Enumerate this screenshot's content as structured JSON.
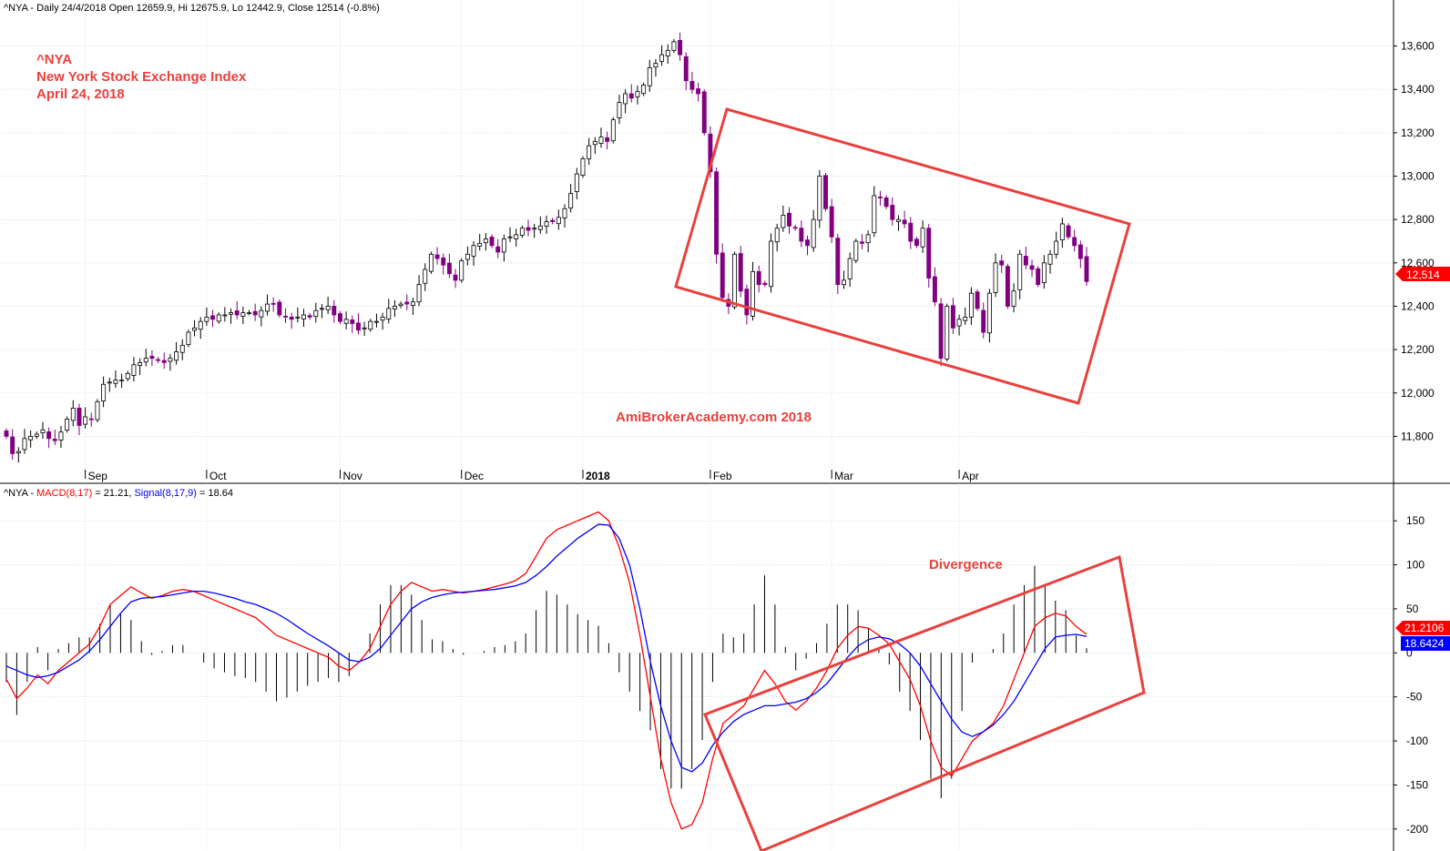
{
  "header": {
    "price_info": "^NYA - Daily 24/4/2018 Open 12659.9, Hi 12675.9, Lo 12442.9, Close 12514 (-0.8%)",
    "macd_prefix": "^NYA - ",
    "macd_label": "MACD(8,17)",
    "macd_value": " = 21.21, ",
    "signal_label": "Signal(8,17,9)",
    "signal_value": " = 18.64"
  },
  "annotations": {
    "title_line1": "^NYA",
    "title_line2": "New York Stock Exchange Index",
    "title_line3": "April 24, 2018",
    "watermark": "AmiBrokerAcademy.com  2018",
    "divergence": "Divergence"
  },
  "badges": {
    "close": "12,514",
    "macd": "21.2106",
    "signal": "18.6424"
  },
  "colors": {
    "up_candle": "#ffffff",
    "down_candle": "#800080",
    "macd_line": "#ff0000",
    "signal_line": "#0000ff",
    "annotation": "#e8413c",
    "signal_badge": "#0000ff",
    "close_badge": "#ff0000"
  },
  "chart_data": [
    {
      "type": "candlestick",
      "title": "^NYA - Daily",
      "y_ticks": [
        "11,800",
        "12,000",
        "12,200",
        "12,400",
        "12,600",
        "12,800",
        "13,000",
        "13,200",
        "13,400",
        "13,600"
      ],
      "y_tick_values": [
        11800,
        12000,
        12200,
        12400,
        12600,
        12800,
        13000,
        13200,
        13400,
        13600
      ],
      "ylim": [
        11680,
        13720
      ],
      "x_ticks": [
        "Sep",
        "Oct",
        "Nov",
        "Dec",
        "2018",
        "Feb",
        "Mar",
        "Apr"
      ],
      "x_tick_bars": [
        13,
        33,
        55,
        75,
        95,
        116,
        136,
        157
      ],
      "close_series": [
        11800,
        11720,
        11730,
        11790,
        11800,
        11810,
        11830,
        11790,
        11780,
        11820,
        11880,
        11930,
        11850,
        11890,
        11880,
        11960,
        12040,
        12050,
        12060,
        12060,
        12090,
        12130,
        12140,
        12160,
        12160,
        12150,
        12140,
        12160,
        12190,
        12220,
        12280,
        12300,
        12330,
        12350,
        12340,
        12360,
        12360,
        12370,
        12360,
        12370,
        12370,
        12360,
        12380,
        12410,
        12410,
        12360,
        12350,
        12340,
        12350,
        12360,
        12350,
        12380,
        12390,
        12400,
        12360,
        12330,
        12340,
        12320,
        12290,
        12300,
        12330,
        12330,
        12350,
        12390,
        12400,
        12410,
        12410,
        12420,
        12500,
        12570,
        12640,
        12620,
        12590,
        12550,
        12520,
        12610,
        12640,
        12680,
        12690,
        12710,
        12680,
        12650,
        12710,
        12720,
        12730,
        12760,
        12750,
        12760,
        12770,
        12790,
        12790,
        12810,
        12850,
        12920,
        13010,
        13080,
        13140,
        13160,
        13180,
        13160,
        13260,
        13340,
        13380,
        13360,
        13390,
        13420,
        13500,
        13520,
        13560,
        13580,
        13620,
        13560,
        13440,
        13400,
        13380,
        13200,
        13020,
        12640,
        12440,
        12400,
        12640,
        12470,
        12360,
        12560,
        12500,
        12500,
        12700,
        12760,
        12820,
        12770,
        12760,
        12700,
        12680,
        12800,
        13000,
        12850,
        12720,
        12500,
        12520,
        12620,
        12700,
        12690,
        12730,
        12910,
        12900,
        12860,
        12800,
        12800,
        12780,
        12700,
        12680,
        12760,
        12530,
        12420,
        12160,
        12400,
        12300,
        12340,
        12350,
        12460,
        12390,
        12280,
        12460,
        12600,
        12590,
        12400,
        12470,
        12640,
        12590,
        12570,
        12500,
        12600,
        12640,
        12700,
        12780,
        12720,
        12680,
        12620,
        12514
      ],
      "macd_series": [
        -30,
        -52,
        -40,
        -25,
        -35,
        -20,
        -10,
        0,
        10,
        30,
        55,
        65,
        75,
        68,
        62,
        65,
        70,
        72,
        70,
        65,
        60,
        55,
        50,
        45,
        40,
        30,
        20,
        15,
        10,
        5,
        0,
        -5,
        -15,
        -20,
        -10,
        5,
        30,
        55,
        70,
        80,
        75,
        70,
        72,
        70,
        68,
        70,
        72,
        75,
        78,
        82,
        90,
        110,
        130,
        140,
        145,
        150,
        155,
        160,
        150,
        120,
        80,
        20,
        -50,
        -120,
        -170,
        -200,
        -195,
        -170,
        -120,
        -80,
        -70,
        -60,
        -40,
        -20,
        -35,
        -55,
        -65,
        -55,
        -40,
        -20,
        5,
        20,
        30,
        28,
        20,
        10,
        -10,
        -30,
        -60,
        -100,
        -130,
        -140,
        -120,
        -100,
        -90,
        -80,
        -60,
        -30,
        0,
        30,
        40,
        45,
        42,
        30,
        21
      ],
      "signal_series": [
        -15,
        -20,
        -25,
        -28,
        -26,
        -22,
        -15,
        -8,
        2,
        15,
        30,
        45,
        58,
        62,
        63,
        64,
        66,
        68,
        70,
        70,
        68,
        65,
        62,
        58,
        55,
        50,
        45,
        38,
        30,
        22,
        15,
        8,
        0,
        -8,
        -10,
        -5,
        5,
        20,
        35,
        50,
        58,
        63,
        66,
        68,
        69,
        70,
        71,
        72,
        74,
        76,
        80,
        88,
        98,
        110,
        120,
        130,
        138,
        146,
        145,
        130,
        100,
        50,
        -10,
        -60,
        -100,
        -130,
        -135,
        -125,
        -105,
        -90,
        -78,
        -70,
        -65,
        -60,
        -60,
        -58,
        -56,
        -52,
        -45,
        -35,
        -20,
        -5,
        8,
        15,
        18,
        16,
        10,
        0,
        -15,
        -35,
        -55,
        -75,
        -90,
        -95,
        -90,
        -82,
        -70,
        -55,
        -35,
        -15,
        5,
        18,
        20,
        21,
        18.64
      ],
      "histogram_note": "macd minus signal"
    },
    {
      "type": "line",
      "title": "MACD(8,17) / Signal(8,17,9)",
      "y_ticks": [
        "150",
        "100",
        "50",
        "0",
        "-50",
        "-100",
        "-150",
        "-200"
      ],
      "y_tick_values": [
        150,
        100,
        50,
        0,
        -50,
        -100,
        -150,
        -200
      ],
      "ylim": [
        -225,
        175
      ],
      "series": [
        {
          "name": "MACD(8,17)",
          "last": 21.21
        },
        {
          "name": "Signal(8,17,9)",
          "last": 18.64
        }
      ]
    }
  ]
}
